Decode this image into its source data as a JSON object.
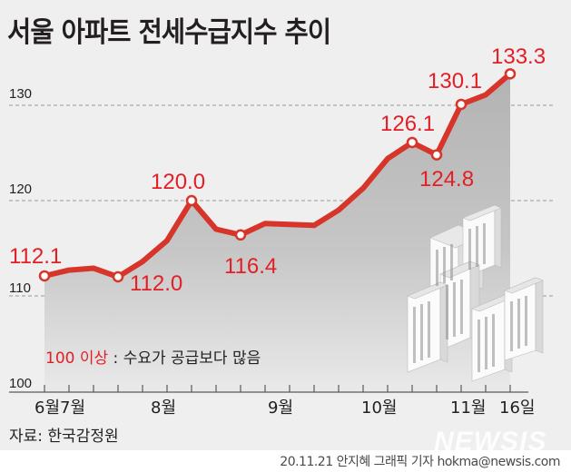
{
  "header": {
    "title": "서울 아파트 전세수급지수 추이"
  },
  "note": {
    "highlight": "100 이상",
    "separator": " : ",
    "text": "수요가 공급보다 많음"
  },
  "footer": {
    "source": "자료: 한국감정원",
    "credit": "20.11.21 안지혜 그래픽 기자 hokma@newsis.com",
    "watermark": "NEWSIS"
  },
  "colors": {
    "background": "#efefef",
    "line": "#d7352a",
    "label": "#e31f26",
    "area_top": "#b5b5b5",
    "area_bottom": "#e9e9e9",
    "grid": "#9a9a9a"
  },
  "chart_data": {
    "type": "line",
    "title": "서울 아파트 전세수급지수 추이",
    "xlabel": "",
    "ylabel": "",
    "ylim": [
      100,
      135
    ],
    "yticks": [
      100,
      110,
      120,
      130
    ],
    "grid": "horizontal dashed at 110, 120, 130",
    "x_tick_labels": [
      {
        "index": 0,
        "label": "6월"
      },
      {
        "index": 1,
        "label": "7월"
      },
      {
        "index": 6,
        "label": "8월"
      },
      {
        "index": 10,
        "label": "9월"
      },
      {
        "index": 15,
        "label": "10월"
      },
      {
        "index": 18,
        "label": "11월"
      },
      {
        "index": 20,
        "label": "16일"
      }
    ],
    "series": [
      {
        "name": "전세수급지수",
        "values": [
          112.1,
          112.7,
          112.9,
          112.0,
          113.6,
          115.8,
          120.0,
          117.0,
          116.4,
          117.6,
          117.5,
          117.4,
          119.0,
          121.3,
          124.4,
          126.1,
          124.8,
          130.1,
          131.1,
          133.3
        ]
      }
    ],
    "annotated_points": [
      {
        "index": 0,
        "value": "112.1"
      },
      {
        "index": 3,
        "value": "112.0"
      },
      {
        "index": 6,
        "value": "120.0"
      },
      {
        "index": 8,
        "value": "116.4"
      },
      {
        "index": 15,
        "value": "126.1"
      },
      {
        "index": 16,
        "value": "124.8"
      },
      {
        "index": 17,
        "value": "130.1"
      },
      {
        "index": 19,
        "value": "133.3"
      }
    ],
    "annotation": "100 이상 : 수요가 공급보다 많음",
    "source": "한국감정원"
  },
  "labels": {
    "y": [
      "130",
      "120",
      "110",
      "100"
    ],
    "x": [
      "6월",
      "7월",
      "8월",
      "9월",
      "10월",
      "11월",
      "16일"
    ],
    "points": [
      "112.1",
      "112.0",
      "120.0",
      "116.4",
      "126.1",
      "124.8",
      "130.1",
      "133.3"
    ]
  }
}
